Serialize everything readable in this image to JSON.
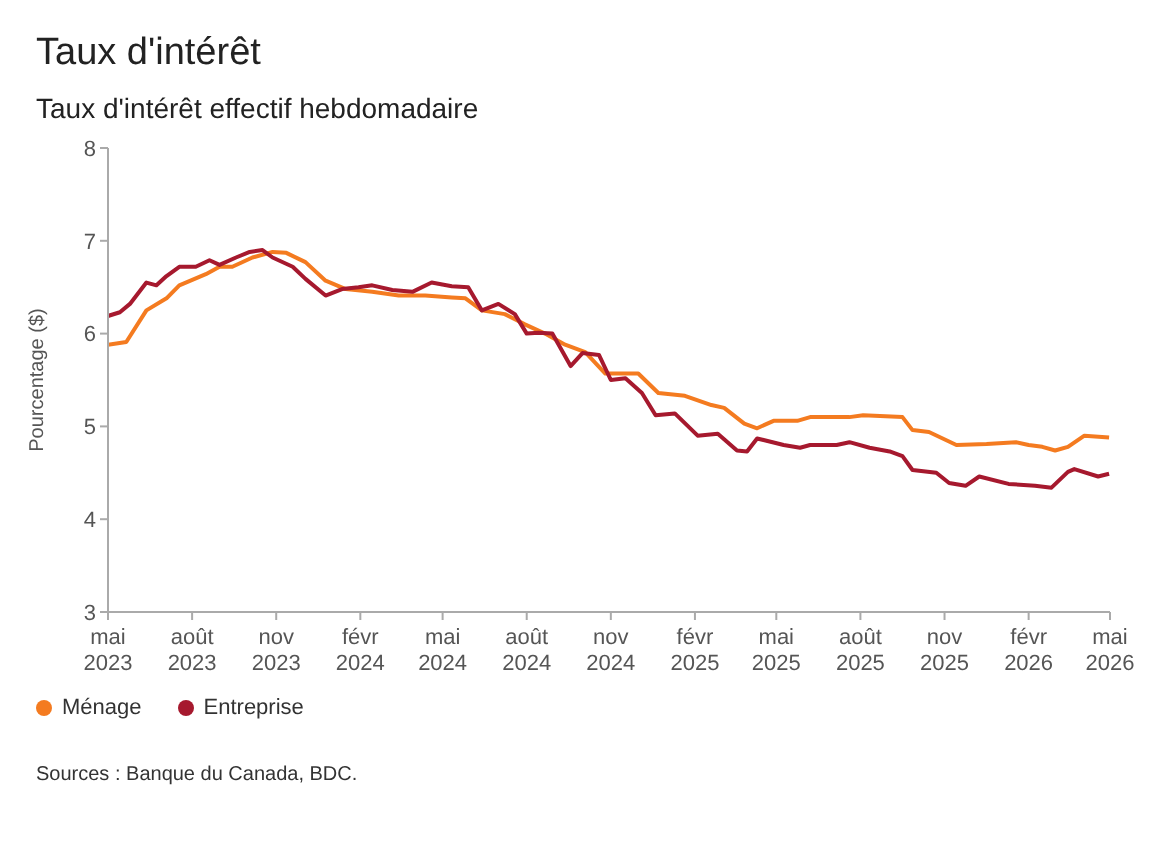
{
  "chart_data": {
    "type": "line",
    "title": "Taux d'intérêt",
    "subtitle": "Taux d'intérêt effectif hebdomadaire",
    "ylabel": "Pourcentage ($)",
    "annotations": [
      "Sources : Banque du Canada, BDC."
    ],
    "xlim": [
      "2023-05-01",
      "2026-05-01"
    ],
    "xticks": [
      {
        "value": "2023-05-01",
        "label": "mai 2023"
      },
      {
        "value": "2023-08-01",
        "label": "août 2023"
      },
      {
        "value": "2023-11-01",
        "label": "nov 2023"
      },
      {
        "value": "2024-02-01",
        "label": "févr 2024"
      },
      {
        "value": "2024-05-01",
        "label": "mai 2024"
      },
      {
        "value": "2024-08-01",
        "label": "août 2024"
      },
      {
        "value": "2024-11-01",
        "label": "nov 2024"
      },
      {
        "value": "2025-02-01",
        "label": "févr 2025"
      },
      {
        "value": "2025-05-01",
        "label": "mai 2025"
      },
      {
        "value": "2025-08-01",
        "label": "août 2025"
      },
      {
        "value": "2025-11-01",
        "label": "nov 2025"
      },
      {
        "value": "2026-02-01",
        "label": "févr 2026"
      },
      {
        "value": "2026-05-01",
        "label": "mai 2026"
      }
    ],
    "ylim": [
      3,
      8
    ],
    "yticks": [
      3,
      4,
      5,
      6,
      7,
      8
    ],
    "grid": false,
    "legend": "bottom left",
    "marker": "none",
    "line_style": "solid",
    "series": [
      {
        "name": "Ménage",
        "color": "#f47b20",
        "x": [
          "2023-05-01",
          "2023-05-21",
          "2023-06-12",
          "2023-07-04",
          "2023-07-18",
          "2023-08-16",
          "2023-08-31",
          "2023-09-14",
          "2023-10-06",
          "2023-10-28",
          "2023-11-12",
          "2023-12-03",
          "2023-12-25",
          "2024-01-16",
          "2024-02-14",
          "2024-03-14",
          "2024-04-12",
          "2024-05-11",
          "2024-05-26",
          "2024-06-13",
          "2024-07-08",
          "2024-07-30",
          "2024-08-21",
          "2024-09-12",
          "2024-10-04",
          "2024-10-26",
          "2024-12-01",
          "2024-12-23",
          "2025-01-21",
          "2025-02-19",
          "2025-03-05",
          "2025-03-27",
          "2025-04-10",
          "2025-04-28",
          "2025-05-24",
          "2025-06-07",
          "2025-07-20",
          "2025-08-04",
          "2025-09-16",
          "2025-09-27",
          "2025-10-15",
          "2025-11-14",
          "2025-12-17",
          "2026-01-18",
          "2026-02-01",
          "2026-02-16",
          "2026-03-02",
          "2026-03-16",
          "2026-04-03",
          "2026-04-30"
        ],
        "values": [
          5.88,
          5.91,
          6.25,
          6.38,
          6.52,
          6.64,
          6.72,
          6.72,
          6.82,
          6.88,
          6.87,
          6.77,
          6.57,
          6.48,
          6.45,
          6.41,
          6.41,
          6.39,
          6.38,
          6.25,
          6.21,
          6.1,
          6.0,
          5.88,
          5.8,
          5.57,
          5.57,
          5.36,
          5.33,
          5.23,
          5.2,
          5.03,
          4.98,
          5.06,
          5.06,
          5.1,
          5.1,
          5.12,
          5.1,
          4.96,
          4.94,
          4.8,
          4.81,
          4.83,
          4.8,
          4.78,
          4.74,
          4.78,
          4.9,
          4.88
        ]
      },
      {
        "name": "Entreprise",
        "color": "#a6192e",
        "x": [
          "2023-05-01",
          "2023-05-14",
          "2023-05-25",
          "2023-06-12",
          "2023-06-23",
          "2023-07-04",
          "2023-07-18",
          "2023-08-05",
          "2023-08-20",
          "2023-08-31",
          "2023-09-18",
          "2023-10-03",
          "2023-10-17",
          "2023-10-28",
          "2023-11-19",
          "2023-12-03",
          "2023-12-25",
          "2024-01-12",
          "2024-01-30",
          "2024-02-14",
          "2024-03-07",
          "2024-03-29",
          "2024-04-19",
          "2024-05-11",
          "2024-05-29",
          "2024-06-13",
          "2024-07-01",
          "2024-07-19",
          "2024-08-01",
          "2024-08-14",
          "2024-08-29",
          "2024-09-18",
          "2024-10-01",
          "2024-10-19",
          "2024-11-01",
          "2024-11-17",
          "2024-12-05",
          "2024-12-20",
          "2025-01-10",
          "2025-02-04",
          "2025-02-26",
          "2025-03-19",
          "2025-03-30",
          "2025-04-10",
          "2025-05-09",
          "2025-05-27",
          "2025-06-07",
          "2025-07-06",
          "2025-07-20",
          "2025-08-11",
          "2025-09-02",
          "2025-09-16",
          "2025-09-27",
          "2025-10-23",
          "2025-11-06",
          "2025-11-24",
          "2025-12-09",
          "2026-01-10",
          "2026-02-08",
          "2026-02-26",
          "2026-03-16",
          "2026-03-23",
          "2026-04-18",
          "2026-04-30"
        ],
        "values": [
          6.19,
          6.23,
          6.32,
          6.55,
          6.52,
          6.62,
          6.72,
          6.72,
          6.79,
          6.74,
          6.82,
          6.88,
          6.9,
          6.82,
          6.72,
          6.59,
          6.41,
          6.48,
          6.5,
          6.52,
          6.47,
          6.45,
          6.55,
          6.51,
          6.5,
          6.25,
          6.32,
          6.21,
          6.0,
          6.01,
          6.0,
          5.65,
          5.79,
          5.77,
          5.5,
          5.52,
          5.36,
          5.12,
          5.14,
          4.9,
          4.92,
          4.74,
          4.73,
          4.87,
          4.8,
          4.77,
          4.8,
          4.8,
          4.83,
          4.77,
          4.73,
          4.68,
          4.53,
          4.5,
          4.39,
          4.36,
          4.46,
          4.38,
          4.36,
          4.34,
          4.51,
          4.54,
          4.46,
          4.49
        ]
      }
    ]
  }
}
